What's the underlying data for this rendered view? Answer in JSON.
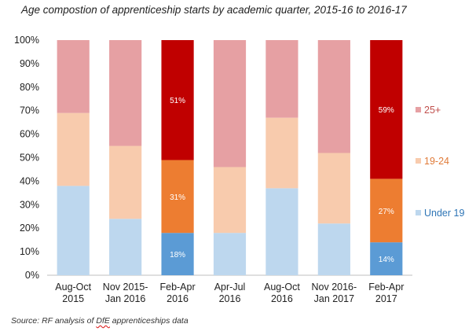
{
  "title": "Age compostion of apprenticeship starts by  academic quarter, 2015-16 to 2016-17",
  "source": {
    "prefix": "Source: RF analysis of ",
    "dfe": "DfE",
    "suffix": " apprenticeships data"
  },
  "colors": {
    "under19_light": "#bdd7ee",
    "under19_dark": "#5b9bd5",
    "age1924_light": "#f8cbad",
    "age1924_dark": "#ed7d31",
    "age25_light": "#e6a0a3",
    "age25_dark": "#c00000",
    "legend_25": "#c0504d",
    "legend_1924": "#e07b39",
    "legend_under19": "#2e75b6"
  },
  "chart_data": {
    "type": "bar",
    "stacked": true,
    "percent": true,
    "categories": [
      [
        "Aug-Oct",
        "2015"
      ],
      [
        "Nov 2015-",
        "Jan 2016"
      ],
      [
        "Feb-Apr",
        "2016"
      ],
      [
        "Apr-Jul",
        "2016"
      ],
      [
        "Aug-Oct",
        "2016"
      ],
      [
        "Nov 2016-",
        "Jan 2017"
      ],
      [
        "Feb-Apr",
        "2017"
      ]
    ],
    "series": [
      {
        "name": "Under 19",
        "values": [
          38,
          24,
          18,
          18,
          37,
          22,
          14
        ]
      },
      {
        "name": "19-24",
        "values": [
          31,
          31,
          31,
          28,
          30,
          30,
          27
        ]
      },
      {
        "name": "25+",
        "values": [
          31,
          45,
          51,
          54,
          33,
          48,
          59
        ]
      }
    ],
    "highlighted": [
      2,
      6
    ],
    "data_labels": {
      "2": [
        "18%",
        "31%",
        "51%"
      ],
      "6": [
        "14%",
        "27%",
        "59%"
      ]
    },
    "ylim": [
      0,
      100
    ],
    "yticks": [
      "0%",
      "10%",
      "20%",
      "30%",
      "40%",
      "50%",
      "60%",
      "70%",
      "80%",
      "90%",
      "100%"
    ],
    "legend_placement": "right",
    "grid": false
  }
}
